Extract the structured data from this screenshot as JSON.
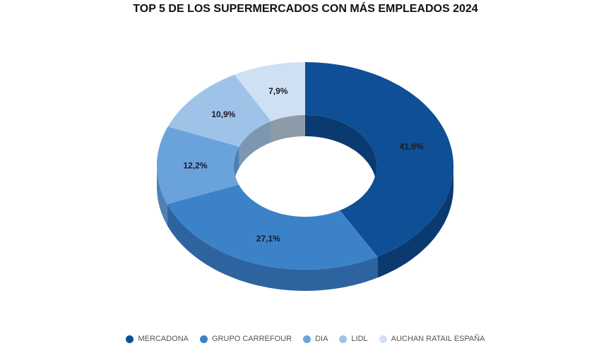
{
  "chart_data": {
    "type": "pie",
    "variant": "3d-donut",
    "title": "TOP 5 DE LOS SUPERMERCADOS CON MÁS EMPLEADOS 2024",
    "categories": [
      "MERCADONA",
      "GRUPO CARREFOUR",
      "DIA",
      "LIDL",
      "AUCHAN RATAIL ESPAÑA"
    ],
    "values": [
      41.9,
      27.1,
      12.2,
      10.9,
      7.9
    ],
    "data_labels": [
      "41,9%",
      "27,1%",
      "12,2%",
      "10,9%",
      "7,9%"
    ],
    "colors": [
      "#0f4f96",
      "#3b82c8",
      "#6aa3dc",
      "#9fc3e8",
      "#cfe0f3"
    ],
    "side_colors": [
      "#0b3a70",
      "#2d64a0",
      "#4f80b4",
      "#7d97b3",
      "#8d9aa8"
    ],
    "legend_position": "bottom"
  }
}
